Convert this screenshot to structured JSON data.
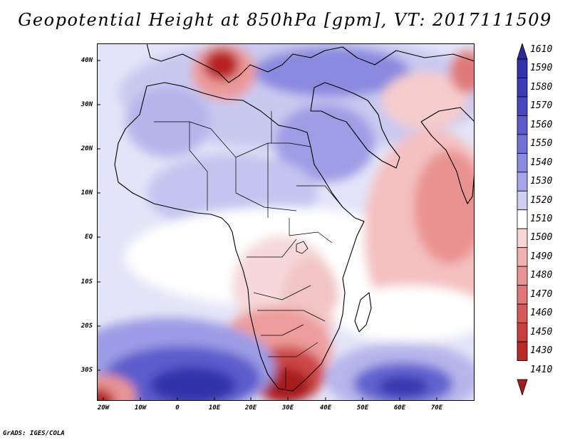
{
  "title": "Geopotential Height at 850hPa [gpm], VT: 2017111509",
  "credit": "GrADS: IGES/COLA",
  "latitude_labels": [
    "40N",
    "30N",
    "20N",
    "10N",
    "EQ",
    "10S",
    "20S",
    "30S"
  ],
  "longitude_labels": [
    "20W",
    "10W",
    "0",
    "10E",
    "20E",
    "30E",
    "40E",
    "50E",
    "60E",
    "70E"
  ],
  "legend": {
    "levels": [
      "1610",
      "1590",
      "1580",
      "1570",
      "1560",
      "1550",
      "1540",
      "1530",
      "1520",
      "1510",
      "1500",
      "1490",
      "1480",
      "1470",
      "1460",
      "1450",
      "1430",
      "1410"
    ],
    "colors": [
      "#2a2a9a",
      "#3333ad",
      "#3d3db8",
      "#4747c2",
      "#5b5bcc",
      "#7070d6",
      "#8a8ae0",
      "#a6a6ea",
      "#cfcff5",
      "#ffffff",
      "#f9d6d6",
      "#f2b2b2",
      "#e89494",
      "#e07676",
      "#d55959",
      "#c93e3e",
      "#bb2828",
      "#a71c1c"
    ]
  },
  "colors": {
    "high": "#3a3ab3",
    "low": "#b01e1e",
    "neutral": "#ffffff"
  }
}
